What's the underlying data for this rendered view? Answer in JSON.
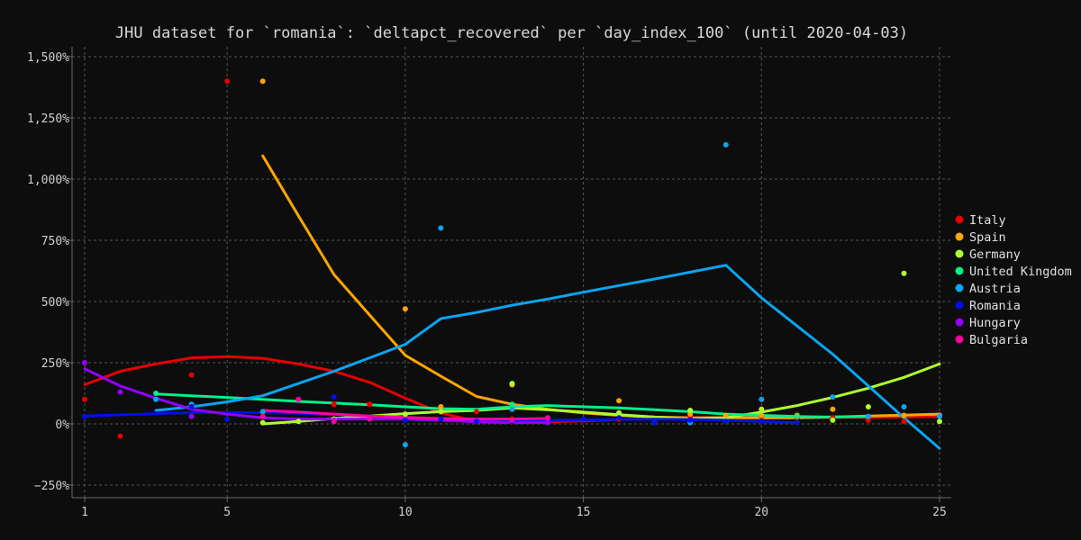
{
  "chart_data": {
    "type": "scatter",
    "title": "JHU dataset for `romania`: `deltapct_recovered` per `day_index_100` (until 2020-04-03)",
    "xlabel": "",
    "ylabel": "",
    "xlim": [
      1,
      25
    ],
    "ylim": [
      -250,
      1500
    ],
    "x_ticks": [
      1,
      5,
      10,
      15,
      20,
      25
    ],
    "x_tick_labels": [
      "1",
      "5",
      "10",
      "15",
      "20",
      "25"
    ],
    "y_ticks": [
      -250,
      0,
      250,
      500,
      750,
      1000,
      1250,
      1500
    ],
    "y_tick_labels": [
      "−250%",
      "0%",
      "250%",
      "500%",
      "750%",
      "1,000%",
      "1,250%",
      "1,500%"
    ],
    "grid": true,
    "legend_position": "right",
    "series": [
      {
        "name": "Italy",
        "color": "#e60000",
        "points": [
          [
            1,
            100
          ],
          [
            2,
            -50
          ],
          [
            4,
            200
          ],
          [
            5,
            1400
          ],
          [
            8,
            80
          ],
          [
            9,
            80
          ],
          [
            11,
            70
          ],
          [
            12,
            50
          ],
          [
            13,
            20
          ],
          [
            15,
            15
          ],
          [
            16,
            20
          ],
          [
            18,
            30
          ],
          [
            20,
            30
          ],
          [
            21,
            25
          ],
          [
            22,
            25
          ],
          [
            23,
            15
          ],
          [
            24,
            10
          ],
          [
            25,
            30
          ]
        ],
        "trend": [
          [
            1,
            160
          ],
          [
            2,
            215
          ],
          [
            3,
            245
          ],
          [
            4,
            270
          ],
          [
            5,
            275
          ],
          [
            6,
            268
          ],
          [
            7,
            245
          ],
          [
            8,
            215
          ],
          [
            9,
            170
          ],
          [
            10,
            105
          ],
          [
            11,
            45
          ],
          [
            12,
            10
          ],
          [
            13,
            5
          ],
          [
            14,
            8
          ],
          [
            15,
            12
          ],
          [
            16,
            18
          ],
          [
            17,
            22
          ],
          [
            18,
            25
          ],
          [
            19,
            27
          ],
          [
            20,
            27
          ],
          [
            21,
            27
          ],
          [
            22,
            27
          ],
          [
            23,
            27
          ],
          [
            24,
            28
          ],
          [
            25,
            30
          ]
        ]
      },
      {
        "name": "Spain",
        "color": "#ffa500",
        "points": [
          [
            6,
            1400
          ],
          [
            10,
            470
          ],
          [
            11,
            70
          ],
          [
            13,
            160
          ],
          [
            16,
            95
          ],
          [
            18,
            40
          ],
          [
            19,
            35
          ],
          [
            20,
            35
          ],
          [
            21,
            35
          ],
          [
            22,
            60
          ],
          [
            24,
            35
          ],
          [
            25,
            35
          ]
        ],
        "trend": [
          [
            6,
            1095
          ],
          [
            7,
            850
          ],
          [
            8,
            610
          ],
          [
            9,
            445
          ],
          [
            10,
            280
          ],
          [
            11,
            195
          ],
          [
            12,
            112
          ],
          [
            13,
            80
          ],
          [
            14,
            60
          ],
          [
            15,
            45
          ],
          [
            16,
            35
          ],
          [
            17,
            28
          ],
          [
            18,
            25
          ],
          [
            19,
            25
          ],
          [
            20,
            25
          ],
          [
            21,
            25
          ],
          [
            22,
            28
          ],
          [
            23,
            32
          ],
          [
            24,
            36
          ],
          [
            25,
            40
          ]
        ]
      },
      {
        "name": "Germany",
        "color": "#adff2f",
        "points": [
          [
            6,
            5
          ],
          [
            7,
            10
          ],
          [
            8,
            20
          ],
          [
            10,
            40
          ],
          [
            11,
            50
          ],
          [
            13,
            165
          ],
          [
            16,
            45
          ],
          [
            18,
            55
          ],
          [
            19,
            10
          ],
          [
            20,
            60
          ],
          [
            22,
            15
          ],
          [
            23,
            70
          ],
          [
            24,
            615
          ],
          [
            25,
            10
          ]
        ],
        "trend": [
          [
            6,
            0
          ],
          [
            7,
            10
          ],
          [
            8,
            22
          ],
          [
            9,
            32
          ],
          [
            10,
            42
          ],
          [
            11,
            50
          ],
          [
            12,
            55
          ],
          [
            13,
            65
          ],
          [
            14,
            58
          ],
          [
            15,
            48
          ],
          [
            16,
            38
          ],
          [
            17,
            28
          ],
          [
            18,
            18
          ],
          [
            19,
            25
          ],
          [
            20,
            48
          ],
          [
            21,
            75
          ],
          [
            22,
            108
          ],
          [
            23,
            146
          ],
          [
            24,
            190
          ],
          [
            25,
            245
          ]
        ]
      },
      {
        "name": "United Kingdom",
        "color": "#00f08a",
        "points": [
          [
            3,
            125
          ],
          [
            13,
            80
          ],
          [
            21,
            30
          ],
          [
            23,
            30
          ]
        ],
        "trend": [
          [
            3,
            122
          ],
          [
            4,
            115
          ],
          [
            5,
            108
          ],
          [
            6,
            100
          ],
          [
            7,
            92
          ],
          [
            8,
            85
          ],
          [
            9,
            78
          ],
          [
            10,
            70
          ],
          [
            11,
            62
          ],
          [
            12,
            60
          ],
          [
            13,
            70
          ],
          [
            14,
            75
          ],
          [
            15,
            70
          ],
          [
            16,
            65
          ],
          [
            17,
            58
          ],
          [
            18,
            50
          ],
          [
            19,
            40
          ],
          [
            20,
            35
          ],
          [
            21,
            30
          ],
          [
            22,
            28
          ],
          [
            23,
            30
          ]
        ]
      },
      {
        "name": "Austria",
        "color": "#0aa4f0",
        "points": [
          [
            3,
            100
          ],
          [
            4,
            80
          ],
          [
            6,
            50
          ],
          [
            10,
            -85
          ],
          [
            11,
            800
          ],
          [
            12,
            10
          ],
          [
            13,
            60
          ],
          [
            17,
            5
          ],
          [
            18,
            5
          ],
          [
            19,
            1140
          ],
          [
            20,
            100
          ],
          [
            22,
            110
          ],
          [
            23,
            30
          ],
          [
            24,
            70
          ],
          [
            25,
            30
          ]
        ],
        "trend": [
          [
            3,
            55
          ],
          [
            4,
            70
          ],
          [
            5,
            90
          ],
          [
            6,
            115
          ],
          [
            7,
            165
          ],
          [
            8,
            215
          ],
          [
            9,
            270
          ],
          [
            10,
            325
          ],
          [
            11,
            430
          ],
          [
            12,
            455
          ],
          [
            13,
            485
          ],
          [
            14,
            510
          ],
          [
            15,
            538
          ],
          [
            16,
            565
          ],
          [
            17,
            592
          ],
          [
            18,
            620
          ],
          [
            19,
            648
          ],
          [
            20,
            515
          ],
          [
            21,
            400
          ],
          [
            22,
            285
          ],
          [
            23,
            155
          ],
          [
            24,
            25
          ],
          [
            25,
            -100
          ]
        ]
      },
      {
        "name": "Romania",
        "color": "#0010e8",
        "points": [
          [
            1,
            30
          ],
          [
            4,
            70
          ],
          [
            5,
            20
          ],
          [
            8,
            110
          ],
          [
            9,
            20
          ],
          [
            10,
            15
          ],
          [
            11,
            20
          ],
          [
            12,
            10
          ],
          [
            13,
            10
          ],
          [
            14,
            25
          ],
          [
            15,
            20
          ],
          [
            16,
            25
          ],
          [
            17,
            5
          ],
          [
            18,
            15
          ],
          [
            19,
            10
          ],
          [
            20,
            10
          ],
          [
            21,
            5
          ]
        ],
        "trend": [
          [
            1,
            32
          ],
          [
            2,
            37
          ],
          [
            3,
            42
          ],
          [
            4,
            46
          ],
          [
            5,
            47
          ],
          [
            6,
            46
          ],
          [
            7,
            43
          ],
          [
            8,
            39
          ],
          [
            9,
            32
          ],
          [
            10,
            26
          ],
          [
            11,
            20
          ],
          [
            12,
            15
          ],
          [
            13,
            13
          ],
          [
            14,
            14
          ],
          [
            15,
            16
          ],
          [
            16,
            18
          ],
          [
            17,
            19
          ],
          [
            18,
            18
          ],
          [
            19,
            15
          ],
          [
            20,
            10
          ],
          [
            21,
            5
          ]
        ]
      },
      {
        "name": "Hungary",
        "color": "#9400ff",
        "points": [
          [
            1,
            250
          ],
          [
            2,
            130
          ],
          [
            4,
            30
          ],
          [
            8,
            15
          ],
          [
            14,
            5
          ]
        ],
        "trend": [
          [
            1,
            225
          ],
          [
            2,
            155
          ],
          [
            3,
            105
          ],
          [
            4,
            60
          ],
          [
            5,
            40
          ],
          [
            6,
            25
          ],
          [
            7,
            20
          ],
          [
            8,
            20
          ],
          [
            9,
            20
          ],
          [
            10,
            20
          ],
          [
            11,
            15
          ],
          [
            12,
            8
          ],
          [
            13,
            5
          ],
          [
            14,
            5
          ]
        ]
      },
      {
        "name": "Bulgaria",
        "color": "#ff00a0",
        "points": [
          [
            6,
            30
          ],
          [
            7,
            100
          ],
          [
            8,
            10
          ],
          [
            9,
            20
          ],
          [
            13,
            15
          ],
          [
            14,
            25
          ]
        ],
        "trend": [
          [
            6,
            55
          ],
          [
            7,
            48
          ],
          [
            8,
            40
          ],
          [
            9,
            32
          ],
          [
            10,
            27
          ],
          [
            11,
            22
          ],
          [
            12,
            20
          ],
          [
            13,
            20
          ],
          [
            14,
            22
          ]
        ]
      }
    ]
  }
}
